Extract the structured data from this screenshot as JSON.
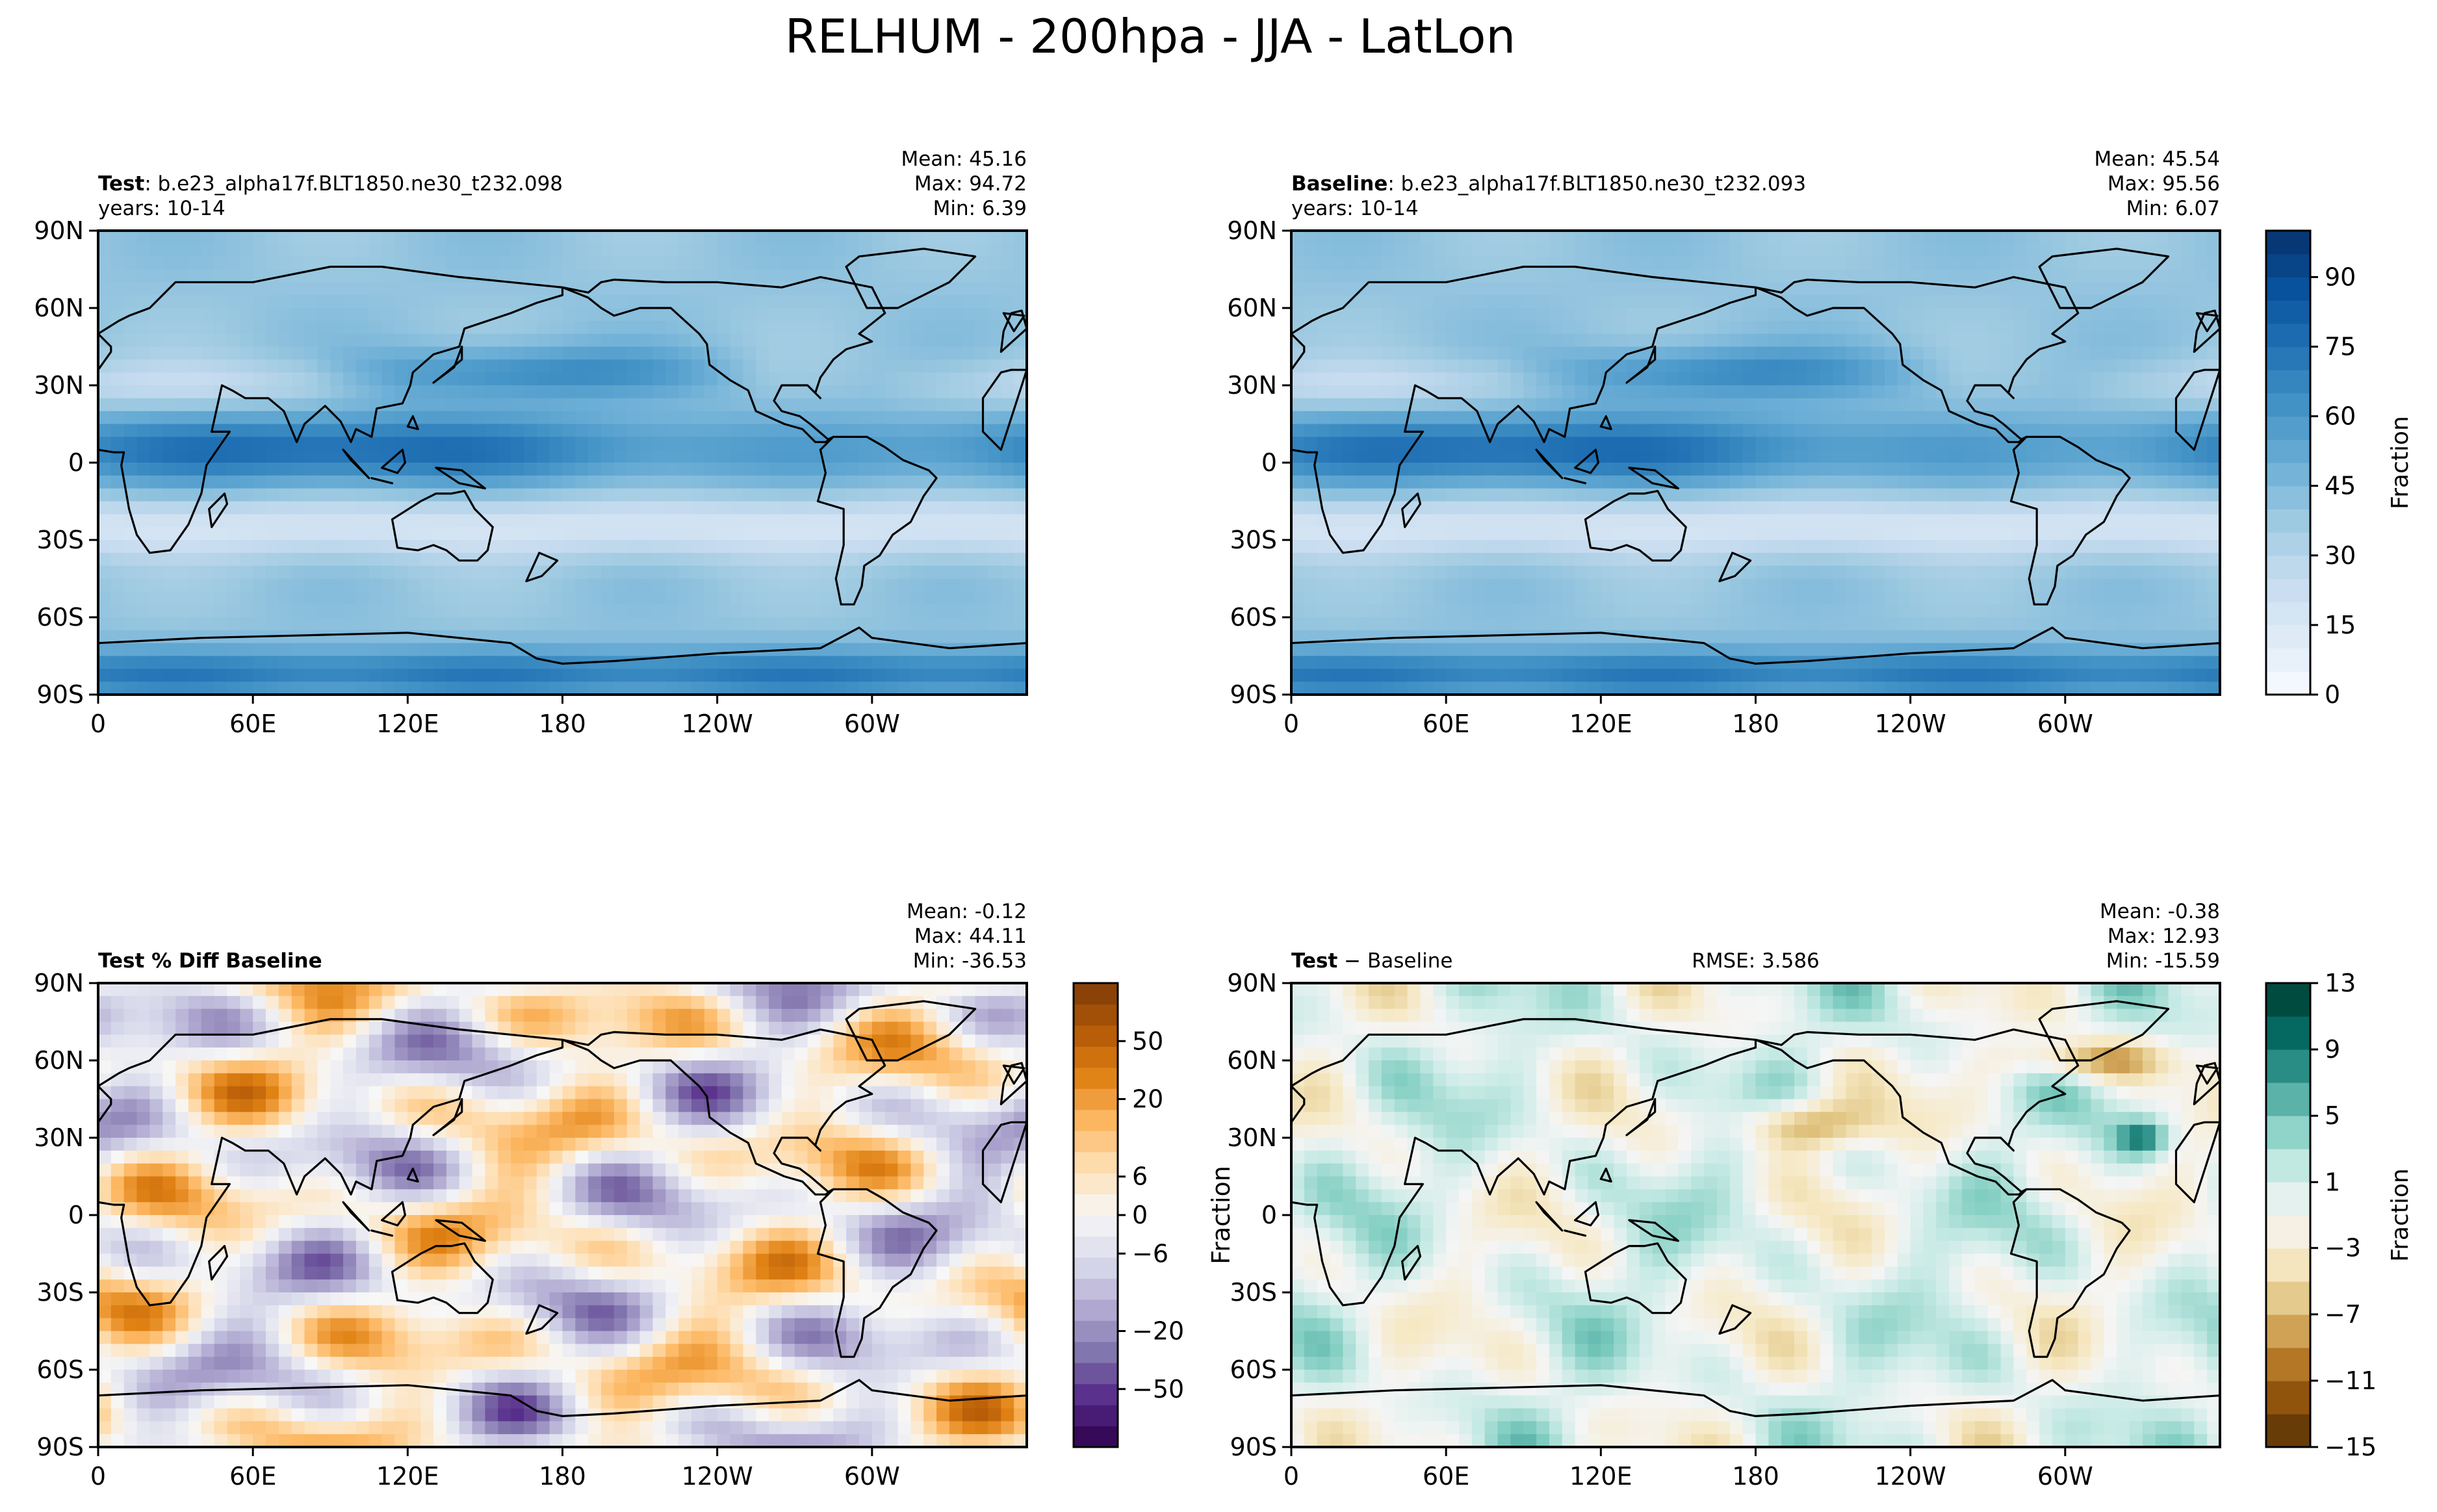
{
  "figure": {
    "title": "RELHUM - 200hpa - JJA - LatLon"
  },
  "chart_data": [
    {
      "type": "heatmap",
      "panel": "test",
      "title_bold": "Test",
      "title_rest": ": b.e23_alpha17f.BLT1850.ne30_t232.098",
      "subtitle": "years: 10-14",
      "stats": [
        "Mean: 45.16",
        "Max: 94.72",
        "Min:  6.39"
      ],
      "x_ticks": [
        "0",
        "60E",
        "120E",
        "180",
        "120W",
        "60W"
      ],
      "y_ticks": [
        "90N",
        "60N",
        "30N",
        "0",
        "30S",
        "60S",
        "90S"
      ],
      "ylabel": "",
      "variable": "relative humidity",
      "value_range": [
        0,
        100
      ],
      "colormap": "Blues"
    },
    {
      "type": "heatmap",
      "panel": "baseline",
      "title_bold": "Baseline",
      "title_rest": ": b.e23_alpha17f.BLT1850.ne30_t232.093",
      "subtitle": "years: 10-14",
      "stats": [
        "Mean: 45.54",
        "Max: 95.56",
        "Min:  6.07"
      ],
      "x_ticks": [
        "0",
        "60E",
        "120E",
        "180",
        "120W",
        "60W"
      ],
      "y_ticks": [
        "90N",
        "60N",
        "30N",
        "0",
        "30S",
        "60S",
        "90S"
      ],
      "ylabel": "",
      "variable": "relative humidity",
      "value_range": [
        0,
        100
      ],
      "colormap": "Blues",
      "colorbar": {
        "label": "Fraction",
        "ticks": [
          "0",
          "15",
          "30",
          "45",
          "60",
          "75",
          "90"
        ],
        "levels": [
          0,
          5,
          10,
          15,
          20,
          25,
          30,
          35,
          40,
          45,
          50,
          55,
          60,
          65,
          70,
          75,
          80,
          85,
          90,
          95,
          100
        ]
      }
    },
    {
      "type": "heatmap",
      "panel": "pct_diff",
      "title_bold": "Test % Diff Baseline",
      "title_rest": "",
      "subtitle": "",
      "stats": [
        "Mean: -0.12",
        "Max: 44.11",
        "Min: -36.53"
      ],
      "x_ticks": [
        "0",
        "60E",
        "120E",
        "180",
        "120W",
        "60W"
      ],
      "y_ticks": [
        "90N",
        "60N",
        "30N",
        "0",
        "30S",
        "60S",
        "90S"
      ],
      "ylabel": "",
      "value_range": [
        -60,
        60
      ],
      "colormap": "PuOr_r",
      "colorbar": {
        "label": "",
        "ticks": [
          "50",
          "20",
          "6",
          "0",
          "−6",
          "−20",
          "−50"
        ]
      }
    },
    {
      "type": "heatmap",
      "panel": "diff",
      "title_bold": "Test",
      "title_rest": " − Baseline",
      "rmse": "RMSE: 3.586",
      "subtitle": "",
      "stats": [
        "Mean: -0.38",
        "Max: 12.93",
        "Min: -15.59"
      ],
      "x_ticks": [
        "0",
        "60E",
        "120E",
        "180",
        "120W",
        "60W"
      ],
      "y_ticks": [
        "90N",
        "60N",
        "30N",
        "0",
        "30S",
        "60S",
        "90S"
      ],
      "ylabel": "Fraction",
      "value_range": [
        -15,
        13
      ],
      "colormap": "BrBG",
      "colorbar": {
        "label": "Fraction",
        "ticks": [
          "13",
          "9",
          "5",
          "1",
          "−3",
          "−7",
          "−11",
          "−15"
        ]
      }
    }
  ],
  "colors": {
    "blues": [
      "#f7fbff",
      "#deebf7",
      "#c6dbef",
      "#9ecae1",
      "#6baed6",
      "#4292c6",
      "#2171b5",
      "#08519c",
      "#08306b"
    ],
    "puor": [
      "#2d004b",
      "#542788",
      "#8073ac",
      "#b2abd2",
      "#d8daeb",
      "#f7f7f7",
      "#fee0b6",
      "#fdb863",
      "#e08214",
      "#b35806",
      "#7f3b08"
    ],
    "brbg": [
      "#543005",
      "#8c510a",
      "#bf812d",
      "#dfc27d",
      "#f6e8c3",
      "#f5f5f5",
      "#c7eae5",
      "#80cdc1",
      "#35978f",
      "#01665e",
      "#003c30"
    ]
  }
}
